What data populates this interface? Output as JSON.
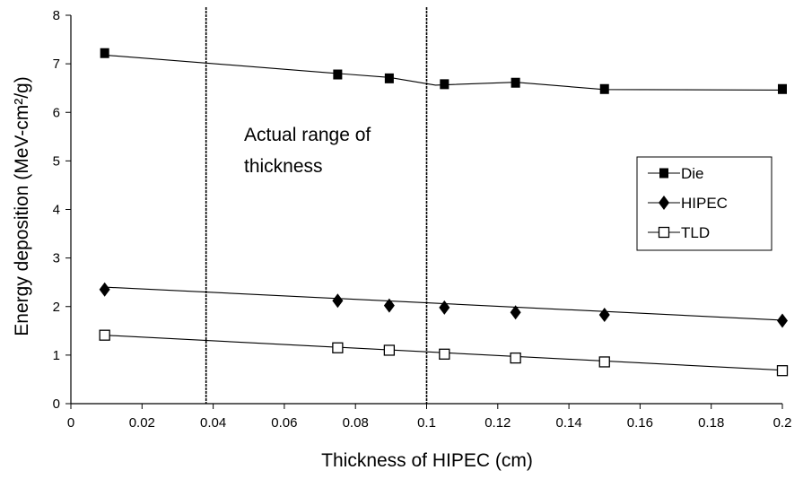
{
  "chart_data": {
    "type": "line",
    "xlabel": "Thickness of HIPEC (cm)",
    "ylabel": "Energy deposition (MeV-cm²/g)",
    "xlim": [
      0,
      0.2
    ],
    "ylim": [
      0,
      8
    ],
    "x_ticks": [
      "0",
      "0.02",
      "0.04",
      "0.06",
      "0.08",
      "0.1",
      "0.12",
      "0.14",
      "0.16",
      "0.18",
      "0.2"
    ],
    "y_ticks": [
      "0",
      "1",
      "2",
      "3",
      "4",
      "5",
      "6",
      "7",
      "8"
    ],
    "grid": false,
    "legend_position": "right",
    "x": [
      0.0095,
      0.075,
      0.0895,
      0.105,
      0.125,
      0.15,
      0.2
    ],
    "series": [
      {
        "name": "Die",
        "marker": "filled-square",
        "values": [
          7.22,
          6.78,
          6.7,
          6.58,
          6.61,
          6.48,
          6.48
        ],
        "trend": [
          [
            0.0095,
            7.18
          ],
          [
            0.075,
            6.8
          ],
          [
            0.0895,
            6.72
          ],
          [
            0.1025,
            6.56
          ],
          [
            0.125,
            6.62
          ],
          [
            0.15,
            6.47
          ],
          [
            0.2,
            6.46
          ]
        ]
      },
      {
        "name": "HIPEC",
        "marker": "filled-diamond",
        "values": [
          2.35,
          2.12,
          2.02,
          1.98,
          1.88,
          1.83,
          1.71
        ],
        "trend": [
          [
            0.0095,
            2.4
          ],
          [
            0.2,
            1.72
          ]
        ]
      },
      {
        "name": "TLD",
        "marker": "open-square",
        "values": [
          1.41,
          1.15,
          1.1,
          1.02,
          0.94,
          0.86,
          0.68
        ],
        "trend": [
          [
            0.0095,
            1.41
          ],
          [
            0.2,
            0.69
          ]
        ]
      }
    ],
    "annotations": [
      {
        "text_lines": [
          "Actual range of",
          "thickness"
        ]
      }
    ],
    "vertical_lines": [
      0.038,
      0.1
    ]
  }
}
